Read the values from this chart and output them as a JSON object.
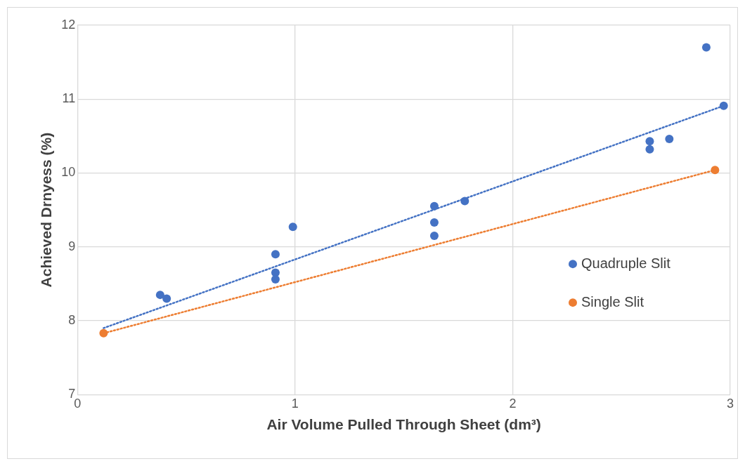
{
  "chart_data": {
    "type": "scatter",
    "xlabel": "Air Volume Pulled Through Sheet (dm³)",
    "ylabel": "Achieved Drnyess (%)",
    "xlim": [
      0,
      3
    ],
    "xticks": [
      0,
      1,
      2,
      3
    ],
    "ylim": [
      7,
      12
    ],
    "yticks": [
      7,
      8,
      9,
      10,
      11,
      12
    ],
    "grid": true,
    "legend": "right",
    "marker": "circle",
    "series": [
      {
        "name": "Quadruple Slit",
        "color": "#4472c4",
        "x": [
          0.38,
          0.41,
          0.91,
          0.91,
          0.91,
          0.99,
          1.64,
          1.64,
          1.64,
          1.78,
          2.63,
          2.63,
          2.72,
          2.89,
          2.97
        ],
        "values": [
          8.35,
          8.3,
          8.9,
          8.65,
          8.56,
          9.27,
          9.55,
          9.33,
          9.15,
          9.62,
          10.43,
          10.32,
          10.46,
          11.7,
          10.91
        ]
      },
      {
        "name": "Single Slit",
        "color": "#ed7d31",
        "x": [
          0.12,
          2.93
        ],
        "values": [
          7.83,
          10.04
        ]
      },
      {
        "type": "line",
        "marker": "none",
        "color": "#4472c4",
        "line_style": "dotted",
        "x": [
          0.12,
          2.97
        ],
        "values": [
          7.9,
          10.91
        ]
      },
      {
        "type": "line",
        "marker": "none",
        "color": "#ed7d31",
        "line_style": "dotted",
        "x": [
          0.12,
          2.93
        ],
        "values": [
          7.83,
          10.04
        ]
      }
    ]
  }
}
